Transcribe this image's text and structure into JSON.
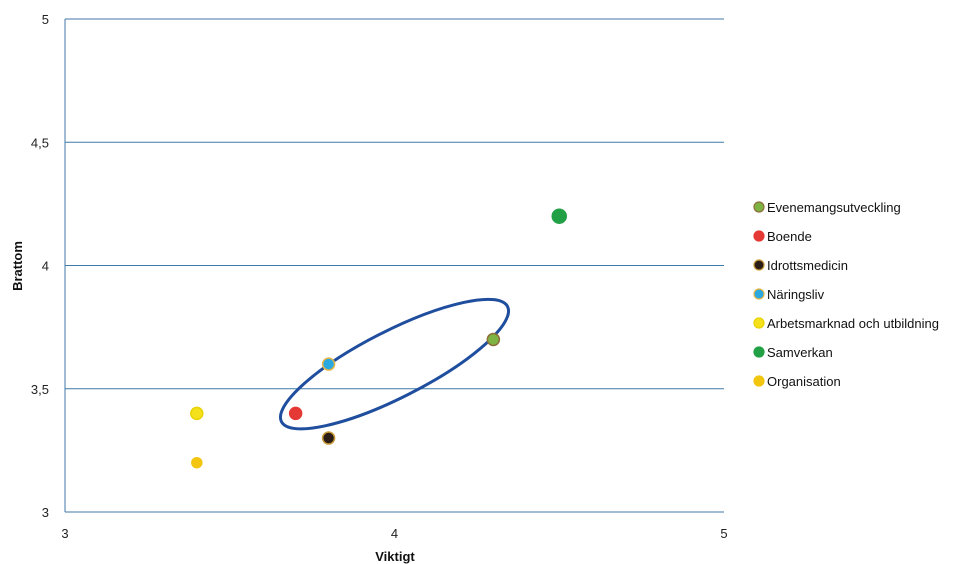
{
  "chart_data": {
    "type": "scatter",
    "xlabel": "Viktigt",
    "ylabel": "Brattom",
    "xlim": [
      3,
      5
    ],
    "ylim": [
      3,
      5
    ],
    "xticks": [
      "3",
      "4",
      "5"
    ],
    "yticks": [
      "3",
      "3,5",
      "4",
      "4,5",
      "5"
    ],
    "grid": "horizontal",
    "legend_position": "right",
    "series": [
      {
        "name": "Evenemangsutveckling",
        "color": "#7cb342",
        "border": "#8d6e3a",
        "points": [
          [
            4.3,
            3.7
          ]
        ]
      },
      {
        "name": "Boende",
        "color": "#e53935",
        "border": "#e53935",
        "points": [
          [
            3.7,
            3.4
          ]
        ]
      },
      {
        "name": "Idrottsmedicin",
        "color": "#2b1d16",
        "border": "#c79a3a",
        "points": [
          [
            3.8,
            3.3
          ]
        ]
      },
      {
        "name": "Näringsliv",
        "color": "#2aa8e0",
        "border": "#e3b54a",
        "points": [
          [
            3.8,
            3.6
          ]
        ]
      },
      {
        "name": "Arbetsmarknad och utbildning",
        "color": "#f4e11c",
        "border": "#e8d200",
        "points": [
          [
            3.4,
            3.4
          ]
        ]
      },
      {
        "name": "Samverkan",
        "color": "#22a046",
        "border": "#22a046",
        "points": [
          [
            4.5,
            4.2
          ]
        ]
      },
      {
        "name": "Organisation",
        "color": "#f2c50f",
        "border": "#f2c50f",
        "points": [
          [
            3.4,
            3.2
          ]
        ]
      }
    ],
    "annotations": [
      {
        "type": "ellipse",
        "center": [
          4.0,
          3.6
        ],
        "rx": 0.385,
        "ry_data": 0.135,
        "rotation_deg": -27,
        "color": "#1f4e9e"
      }
    ]
  }
}
